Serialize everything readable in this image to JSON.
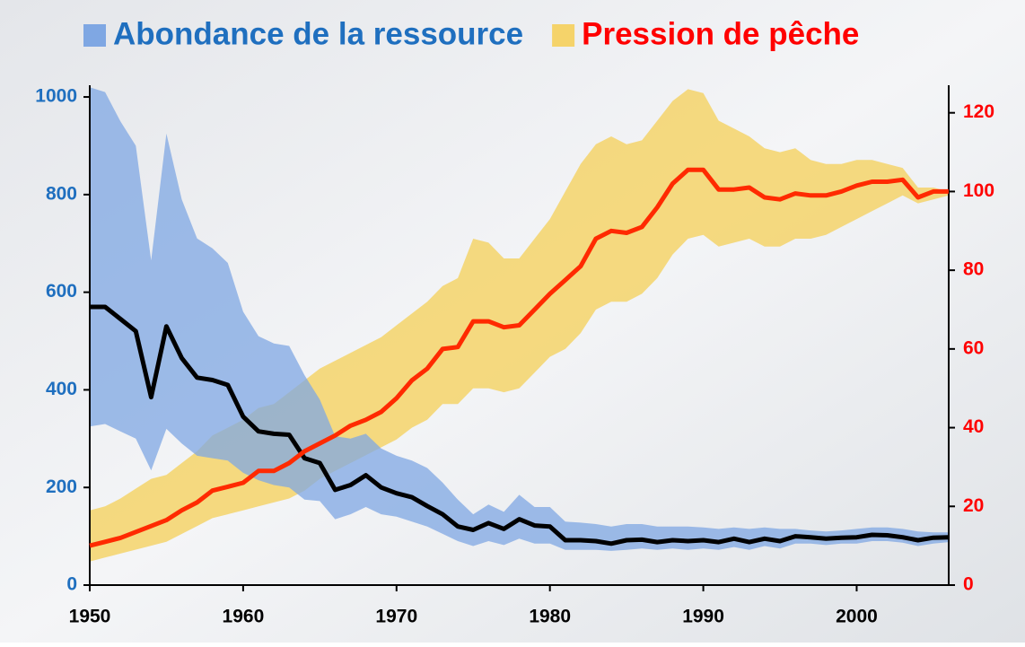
{
  "chart_data": {
    "type": "band-line",
    "x": [
      1950,
      1951,
      1952,
      1953,
      1954,
      1955,
      1956,
      1957,
      1958,
      1959,
      1960,
      1961,
      1962,
      1963,
      1964,
      1965,
      1966,
      1967,
      1968,
      1969,
      1970,
      1971,
      1972,
      1973,
      1974,
      1975,
      1976,
      1977,
      1978,
      1979,
      1980,
      1981,
      1982,
      1983,
      1984,
      1985,
      1986,
      1987,
      1988,
      1989,
      1990,
      1991,
      1992,
      1993,
      1994,
      1995,
      1996,
      1997,
      1998,
      1999,
      2000,
      2001,
      2002,
      2003,
      2004,
      2005,
      2006
    ],
    "xlim": [
      1950,
      2006
    ],
    "xticks": [
      1950,
      1960,
      1970,
      1980,
      1990,
      2000
    ],
    "ylim": [
      0,
      1024
    ],
    "yticks": [
      0,
      200,
      400,
      600,
      800,
      1000
    ],
    "ytick_color": "#1f6fbf",
    "y2lim": [
      0,
      127
    ],
    "y2ticks": [
      0,
      20,
      40,
      60,
      80,
      100,
      120
    ],
    "y2tick_color": "#ff0000",
    "series": [
      {
        "name": "Abondance de la ressource",
        "color": "#7fa7e3",
        "line_color": "#000000",
        "label_color": "#1f6fbf",
        "axis": "y",
        "values": [
          570,
          570,
          545,
          520,
          385,
          530,
          465,
          425,
          420,
          410,
          345,
          315,
          310,
          308,
          260,
          250,
          195,
          205,
          225,
          200,
          188,
          180,
          162,
          145,
          120,
          113,
          127,
          115,
          135,
          122,
          120,
          92,
          92,
          90,
          85,
          92,
          93,
          88,
          92,
          90,
          92,
          88,
          95,
          88,
          95,
          90,
          100,
          98,
          95,
          97,
          98,
          103,
          102,
          98,
          92,
          97,
          98
        ],
        "upper": [
          1020,
          1010,
          950,
          900,
          665,
          925,
          790,
          710,
          690,
          660,
          560,
          510,
          495,
          490,
          430,
          380,
          305,
          300,
          310,
          280,
          265,
          255,
          240,
          210,
          175,
          145,
          165,
          150,
          185,
          160,
          160,
          130,
          128,
          125,
          120,
          125,
          125,
          120,
          120,
          120,
          118,
          115,
          118,
          115,
          118,
          115,
          115,
          112,
          110,
          112,
          115,
          118,
          118,
          115,
          110,
          108,
          108
        ],
        "lower": [
          325,
          330,
          315,
          300,
          235,
          320,
          290,
          265,
          260,
          255,
          230,
          215,
          205,
          200,
          175,
          172,
          135,
          145,
          160,
          145,
          140,
          130,
          120,
          105,
          90,
          80,
          90,
          82,
          95,
          85,
          85,
          72,
          72,
          72,
          70,
          72,
          75,
          72,
          75,
          72,
          75,
          72,
          78,
          72,
          80,
          75,
          85,
          85,
          82,
          85,
          85,
          90,
          90,
          87,
          80,
          85,
          88
        ]
      },
      {
        "name": "Pression de pêche",
        "color": "#f5d36a",
        "line_color": "#ff2a00",
        "label_color": "#ff0000",
        "axis": "y2",
        "values": [
          10,
          11,
          12,
          13.5,
          15,
          16.5,
          19,
          21,
          24,
          25,
          26,
          29,
          29,
          31,
          34,
          36,
          38,
          40.5,
          42,
          44,
          47.5,
          52,
          55,
          60,
          60.5,
          67,
          67,
          65.5,
          66,
          70,
          74,
          77.5,
          81,
          88,
          90,
          89.5,
          91,
          96,
          102,
          105.5,
          105.5,
          100.5,
          100.5,
          101,
          98.5,
          98,
          99.5,
          99,
          99,
          100,
          101.5,
          102.5,
          102.5,
          103,
          98.5,
          100,
          100
        ],
        "upper": [
          19,
          20,
          22,
          24.5,
          27,
          28,
          31,
          34,
          38,
          40,
          42,
          45,
          46,
          49,
          52,
          55,
          57,
          59,
          61,
          63,
          66,
          69,
          72,
          76,
          78,
          88,
          87,
          83,
          83,
          88,
          93,
          100,
          107,
          112,
          114,
          112,
          113,
          118,
          123,
          126,
          125,
          118,
          116,
          114,
          111,
          110,
          111,
          108,
          107,
          107,
          108,
          108,
          107,
          106,
          101,
          101,
          100
        ],
        "lower": [
          6,
          7,
          8,
          9,
          10,
          11,
          13,
          15,
          17,
          18,
          19,
          20,
          21,
          22,
          24,
          27,
          29,
          31,
          33,
          35,
          37,
          40,
          42,
          46,
          46,
          50,
          50,
          49,
          50,
          54,
          58,
          60,
          64,
          70,
          72,
          72,
          74,
          78,
          84,
          88,
          89,
          86,
          87,
          88,
          86,
          86,
          88,
          88,
          89,
          91,
          93,
          95,
          97,
          99,
          97,
          98,
          99
        ]
      }
    ]
  }
}
